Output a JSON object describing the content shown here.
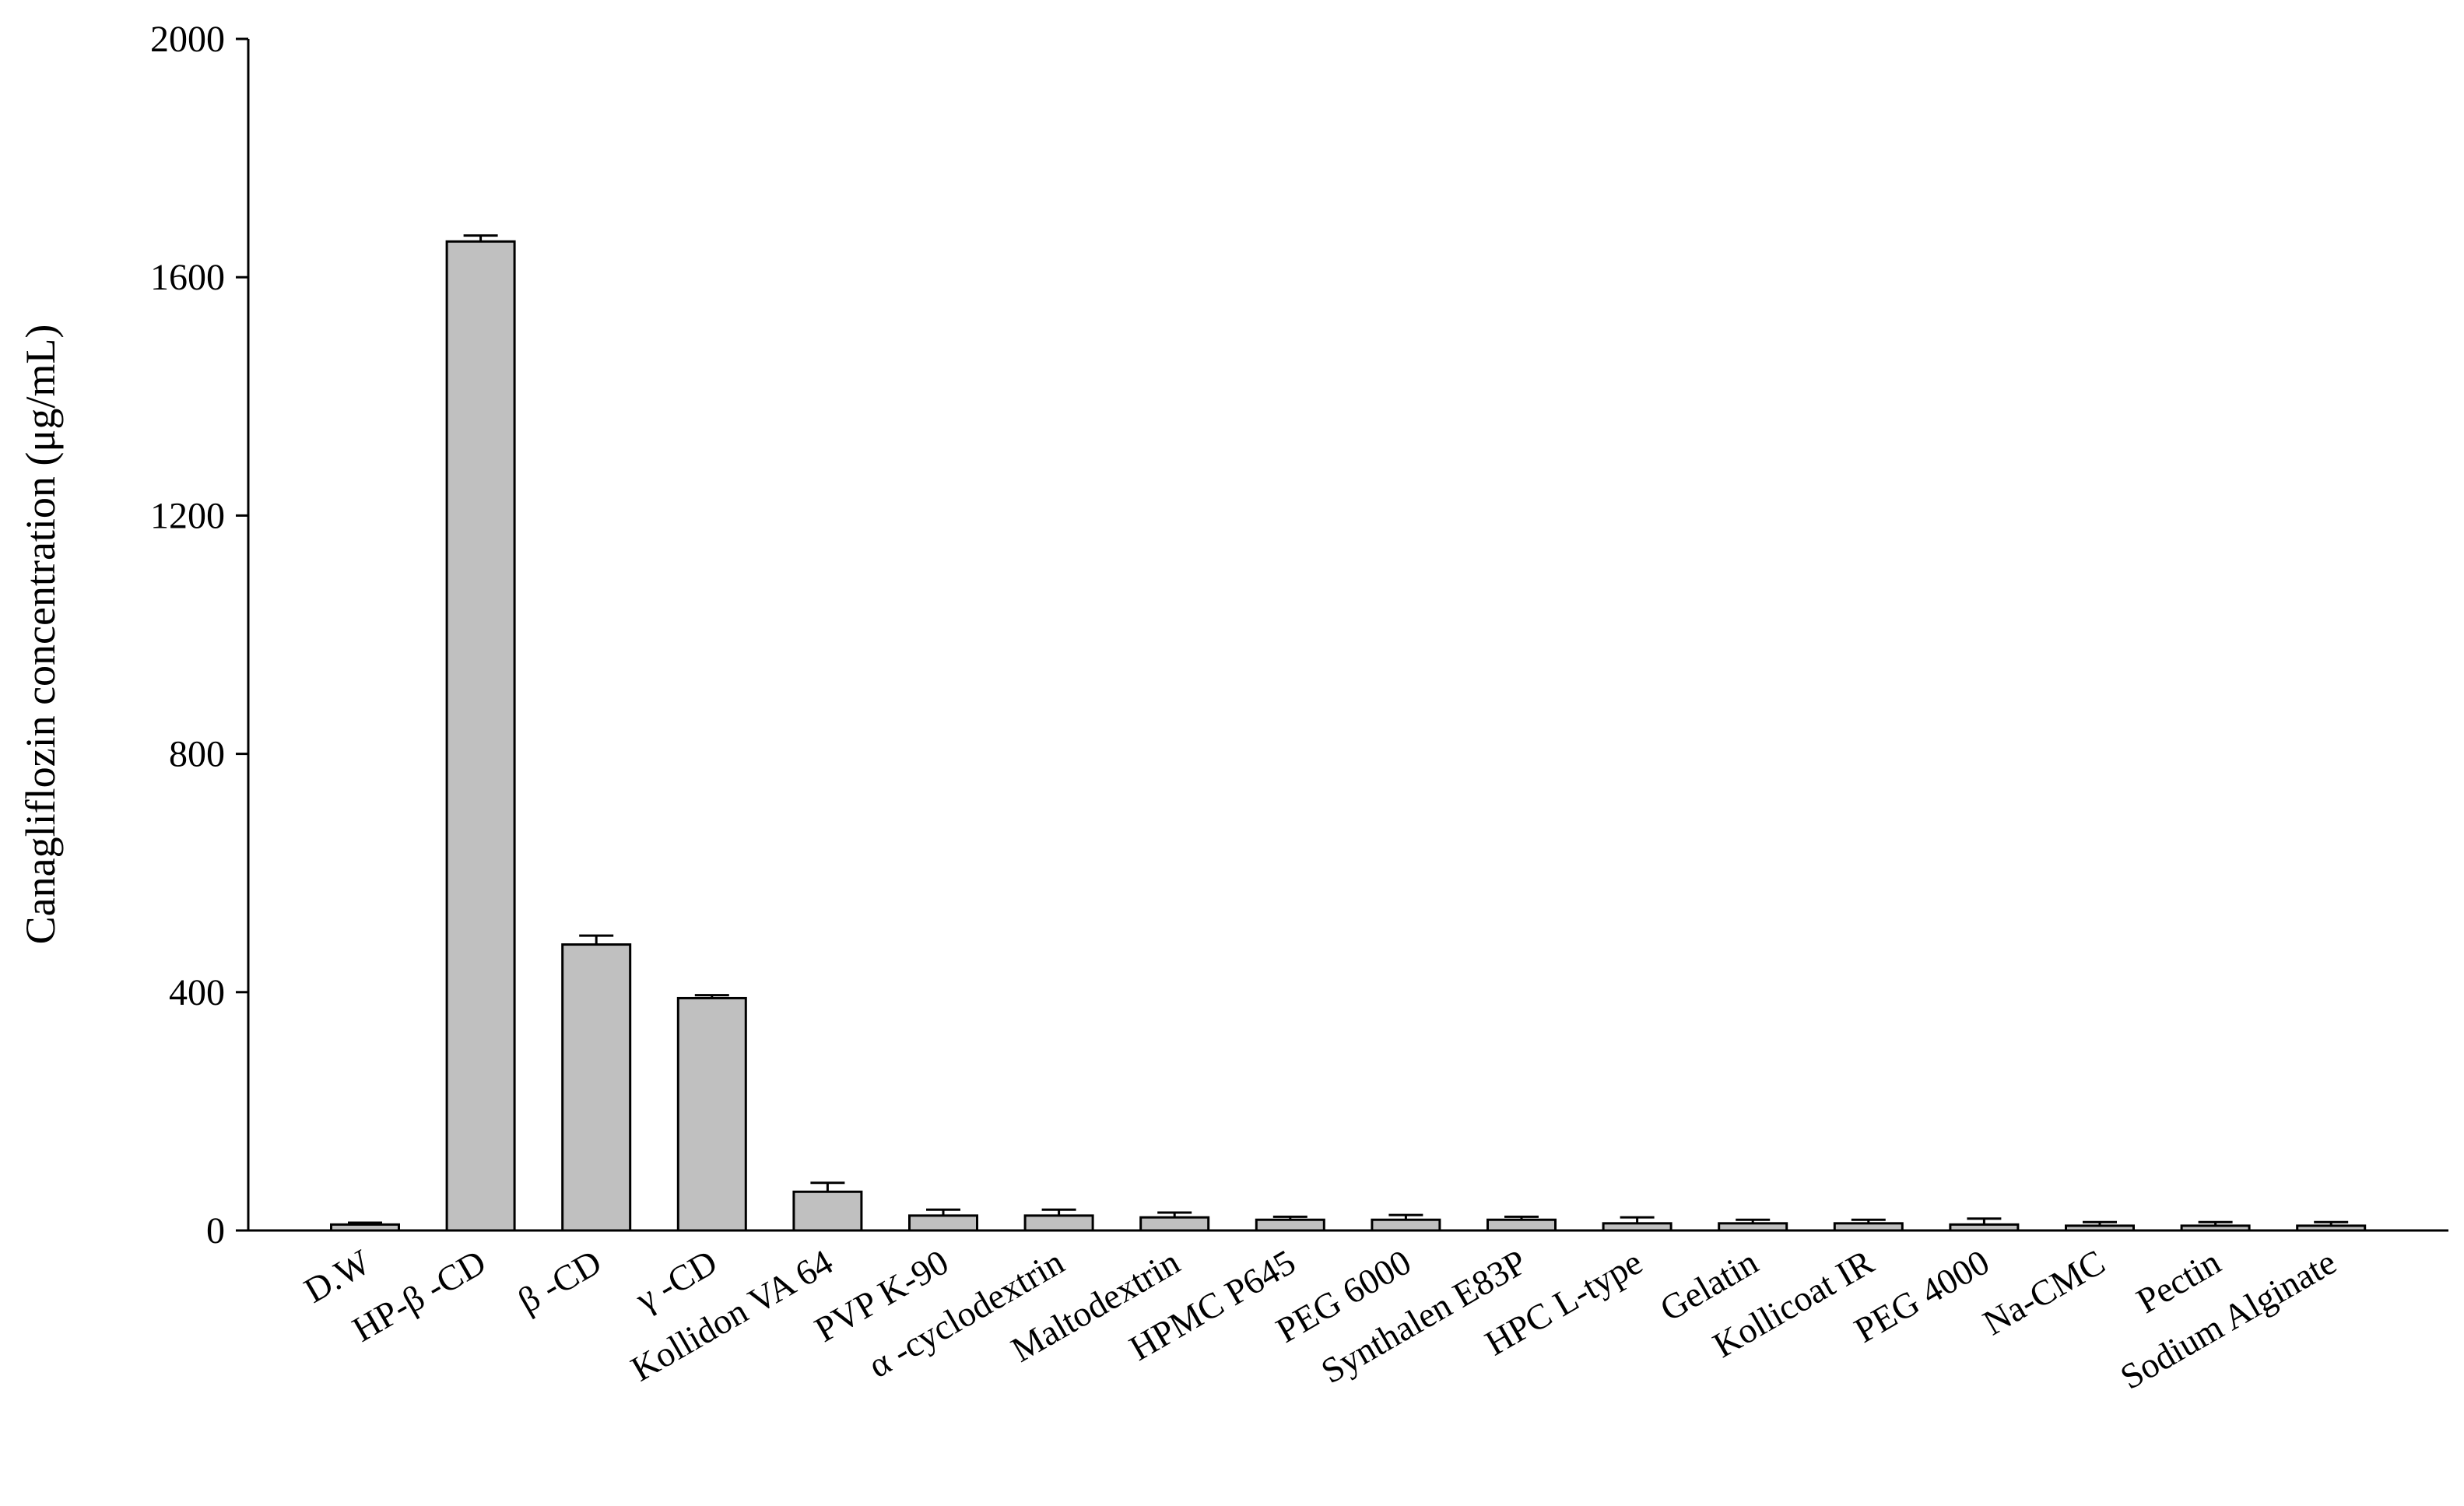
{
  "chart_data": {
    "type": "bar",
    "y_label": "Canagliflozin concentration (μg/mL)",
    "categories": [
      "D.W",
      "HP-β -CD",
      "β -CD",
      "γ -CD",
      "Kollidon VA 64",
      "PVP K-90",
      "α -cyclodextrin",
      "Maltodextrin",
      "HPMC P645",
      "PEG 6000",
      "Synthalen E83P",
      "HPC L-type",
      "Gelatin",
      "Kollicoat IR",
      "PEG 4000",
      "Na-CMC",
      "Pectin",
      "Sodium Alginate"
    ],
    "values": [
      10,
      1660,
      480,
      390,
      65,
      25,
      25,
      22,
      18,
      18,
      18,
      12,
      12,
      12,
      10,
      8,
      8,
      8
    ],
    "errors": [
      3,
      10,
      15,
      5,
      15,
      10,
      10,
      8,
      5,
      8,
      5,
      10,
      6,
      6,
      10,
      6,
      6,
      6
    ],
    "color": "#c0c0c0",
    "ylim": [
      0,
      2000
    ],
    "yticks": [
      0,
      400,
      800,
      1200,
      1600,
      2000
    ]
  }
}
